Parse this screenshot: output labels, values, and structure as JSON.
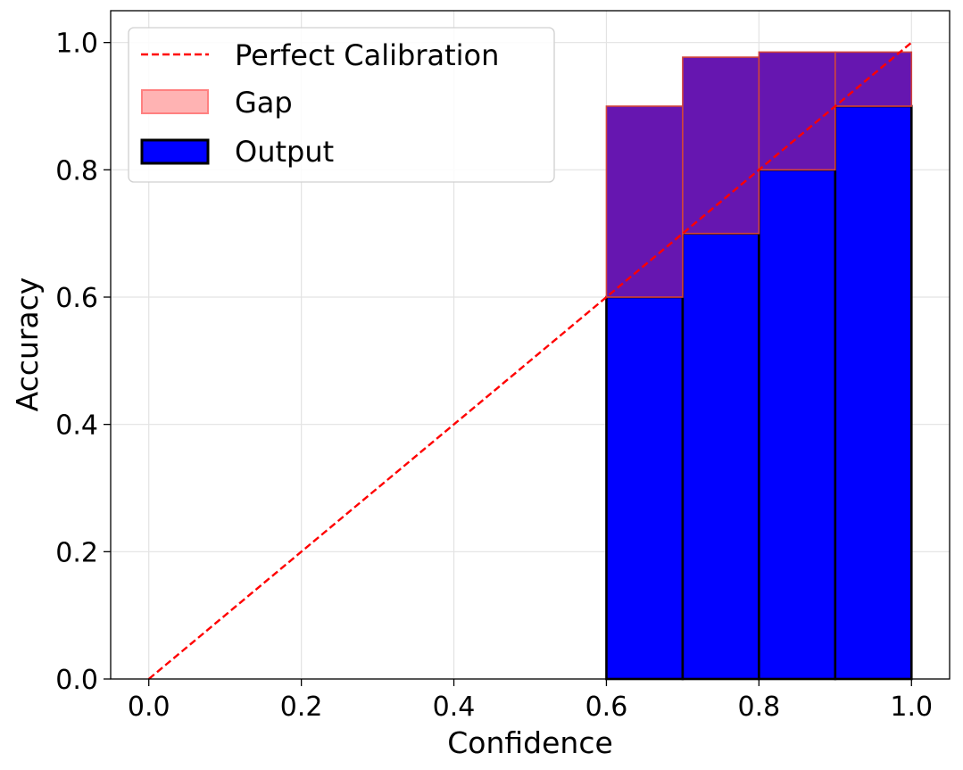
{
  "chart_data": {
    "type": "bar",
    "xlabel": "Confidence",
    "ylabel": "Accuracy",
    "xlim": [
      -0.05,
      1.05
    ],
    "ylim": [
      0.0,
      1.05
    ],
    "xticks": [
      "0.0",
      "0.2",
      "0.4",
      "0.6",
      "0.8",
      "1.0"
    ],
    "yticks": [
      "0.0",
      "0.2",
      "0.4",
      "0.6",
      "0.8",
      "1.0"
    ],
    "grid": true,
    "legend_position": "top-left",
    "bin_width": 0.1,
    "bins": [
      {
        "x0": 0.6,
        "output": 0.6,
        "gap_top": 0.9
      },
      {
        "x0": 0.7,
        "output": 0.7,
        "gap_top": 0.977
      },
      {
        "x0": 0.8,
        "output": 0.8,
        "gap_top": 0.985
      },
      {
        "x0": 0.9,
        "output": 0.9,
        "gap_top": 0.985
      }
    ],
    "reference_line": {
      "x": [
        0,
        1
      ],
      "y": [
        0,
        1
      ]
    },
    "legend": {
      "perfect_calibration": "Perfect Calibration",
      "gap": "Gap",
      "output": "Output"
    },
    "colors": {
      "output_fill": "#0000ff",
      "output_edge": "#000000",
      "gap_fill": "#6616b0",
      "gap_edge": "#d2443c",
      "gap_legend_fill": "#ffb3b3",
      "gap_legend_edge": "#ff8080",
      "reference_line": "#ff0000",
      "grid": "#e3e3e3",
      "axes": "#000000"
    }
  }
}
